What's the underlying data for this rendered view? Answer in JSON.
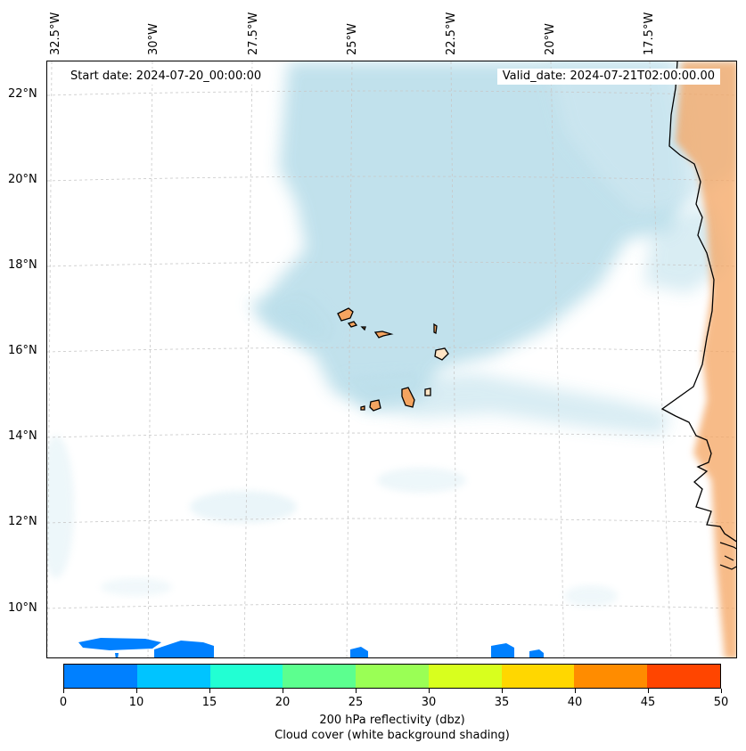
{
  "header": {
    "start_date": "Start date: 2024-07-20_00:00:00",
    "valid_date": "Valid_date: 2024-07-21T02:00:00.00"
  },
  "axes": {
    "longitude_labels": [
      "32.5°W",
      "30°W",
      "27.5°W",
      "25°W",
      "22.5°W",
      "20°W",
      "17.5°W"
    ],
    "latitude_labels": [
      "22°N",
      "20°N",
      "18°N",
      "16°N",
      "14°N",
      "12°N",
      "10°N"
    ]
  },
  "colorbar": {
    "ticks": [
      "0",
      "10",
      "15",
      "20",
      "25",
      "30",
      "35",
      "40",
      "45",
      "50"
    ],
    "colors": [
      "#0080ff",
      "#00c4ff",
      "#22ffd3",
      "#5cff8f",
      "#9aff55",
      "#d8ff1e",
      "#ffd700",
      "#ff8c00",
      "#ff4500"
    ],
    "label_line1": "200 hPa reflectivity (dbz)",
    "label_line2": "Cloud cover (white background shading)"
  },
  "map": {
    "cloud_color": "#add8e6",
    "land_color": "#f4a460",
    "reflectivity_color": "#0080ff"
  }
}
